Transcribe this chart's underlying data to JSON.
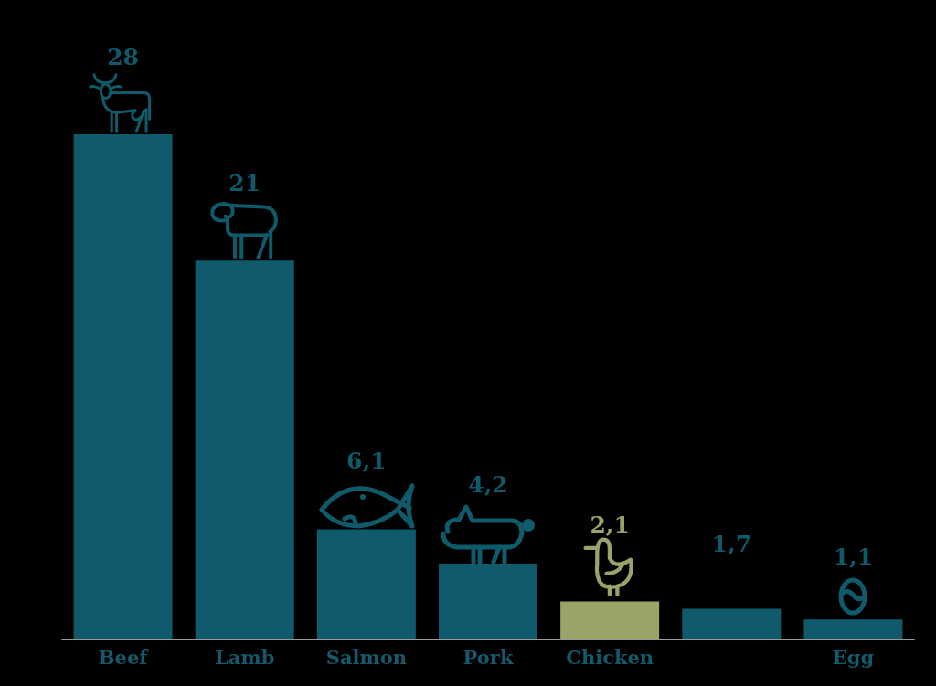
{
  "chart_data": {
    "type": "bar",
    "categories": [
      "Beef",
      "Lamb",
      "Salmon",
      "Pork",
      "Chicken",
      null,
      "Egg"
    ],
    "values": [
      28,
      21,
      6.1,
      4.2,
      2.1,
      1.7,
      1.1
    ],
    "value_labels": [
      "28",
      "21",
      "6,1",
      "4,2",
      "2,1",
      "1,7",
      "1,1"
    ],
    "colors": [
      "#0f5b6b",
      "#0f5b6b",
      "#0f5b6b",
      "#0f5b6b",
      "#9ca368",
      "#0f5b6b",
      "#0f5b6b"
    ]
  }
}
